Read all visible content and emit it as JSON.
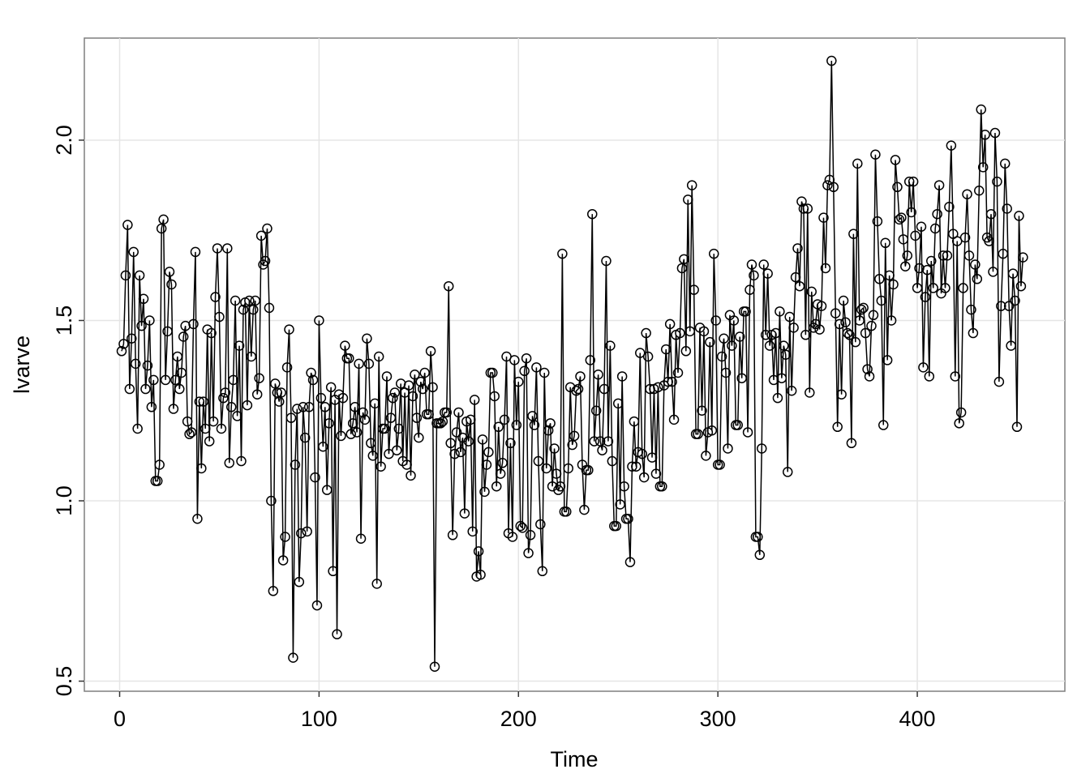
{
  "chart_data": {
    "type": "line",
    "x_label": "Time",
    "y_label": "lvarve",
    "color": "#000000",
    "grid": true,
    "xlim": [
      -17.7,
      474
    ],
    "ylim": [
      0.472,
      2.283
    ],
    "xticks": [
      0,
      100,
      200,
      300,
      400
    ],
    "yticks": [
      {
        "value": 0.5,
        "label": "0.5"
      },
      {
        "value": 1.0,
        "label": "1.0"
      },
      {
        "value": 1.5,
        "label": "1.5"
      },
      {
        "value": 2.0,
        "label": "2.0"
      }
    ],
    "x": [
      1,
      2,
      3,
      4,
      5,
      6,
      7,
      8,
      9,
      10,
      11,
      12,
      13,
      14,
      15,
      16,
      17,
      18,
      19,
      20,
      21,
      22,
      23,
      24,
      25,
      26,
      27,
      28,
      29,
      30,
      31,
      32,
      33,
      34,
      35,
      36,
      37,
      38,
      39,
      40,
      41,
      42,
      43,
      44,
      45,
      46,
      47,
      48,
      49,
      50,
      51,
      52,
      53,
      54,
      55,
      56,
      57,
      58,
      59,
      60,
      61,
      62,
      63,
      64,
      65,
      66,
      67,
      68,
      69,
      70,
      71,
      72,
      73,
      74,
      75,
      76,
      77,
      78,
      79,
      80,
      81,
      82,
      83,
      84,
      85,
      86,
      87,
      88,
      89,
      90,
      91,
      92,
      93,
      94,
      95,
      96,
      97,
      98,
      99,
      100,
      101,
      102,
      103,
      104,
      105,
      106,
      107,
      108,
      109,
      110,
      111,
      112,
      113,
      114,
      115,
      116,
      117,
      118,
      119,
      120,
      121,
      122,
      123,
      124,
      125,
      126,
      127,
      128,
      129,
      130,
      131,
      132,
      133,
      134,
      135,
      136,
      137,
      138,
      139,
      140,
      141,
      142,
      143,
      144,
      145,
      146,
      147,
      148,
      149,
      150,
      151,
      152,
      153,
      154,
      155,
      156,
      157,
      158,
      159,
      160,
      161,
      162,
      163,
      164,
      165,
      166,
      167,
      168,
      169,
      170,
      171,
      172,
      173,
      174,
      175,
      176,
      177,
      178,
      179,
      180,
      181,
      182,
      183,
      184,
      185,
      186,
      187,
      188,
      189,
      190,
      191,
      192,
      193,
      194,
      195,
      196,
      197,
      198,
      199,
      200,
      201,
      202,
      203,
      204,
      205,
      206,
      207,
      208,
      209,
      210,
      211,
      212,
      213,
      214,
      215,
      216,
      217,
      218,
      219,
      220,
      221,
      222,
      223,
      224,
      225,
      226,
      227,
      228,
      229,
      230,
      231,
      232,
      233,
      234,
      235,
      236,
      237,
      238,
      239,
      240,
      241,
      242,
      243,
      244,
      245,
      246,
      247,
      248,
      249,
      250,
      251,
      252,
      253,
      254,
      255,
      256,
      257,
      258,
      259,
      260,
      261,
      262,
      263,
      264,
      265,
      266,
      267,
      268,
      269,
      270,
      271,
      272,
      273,
      274,
      275,
      276,
      277,
      278,
      279,
      280,
      281,
      282,
      283,
      284,
      285,
      286,
      287,
      288,
      289,
      290,
      291,
      292,
      293,
      294,
      295,
      296,
      297,
      298,
      299,
      300,
      301,
      302,
      303,
      304,
      305,
      306,
      307,
      308,
      309,
      310,
      311,
      312,
      313,
      314,
      315,
      316,
      317,
      318,
      319,
      320,
      321,
      322,
      323,
      324,
      325,
      326,
      327,
      328,
      329,
      330,
      331,
      332,
      333,
      334,
      335,
      336,
      337,
      338,
      339,
      340,
      341,
      342,
      343,
      344,
      345,
      346,
      347,
      348,
      349,
      350,
      351,
      352,
      353,
      354,
      355,
      356,
      357,
      358,
      359,
      360,
      361,
      362,
      363,
      364,
      365,
      366,
      367,
      368,
      369,
      370,
      371,
      372,
      373,
      374,
      375,
      376,
      377,
      378,
      379,
      380,
      381,
      382,
      383,
      384,
      385,
      386,
      387,
      388,
      389,
      390,
      391,
      392,
      393,
      394,
      395,
      396,
      397,
      398,
      399,
      400,
      401,
      402,
      403,
      404,
      405,
      406,
      407,
      408,
      409,
      410,
      411,
      412,
      413,
      414,
      415,
      416,
      417,
      418,
      419,
      420,
      421,
      422,
      423,
      424,
      425,
      426,
      427,
      428,
      429,
      430,
      431,
      432,
      433,
      434,
      435,
      436,
      437,
      438,
      439,
      440,
      441,
      442,
      443,
      444,
      445,
      446,
      447,
      448,
      449,
      450,
      451,
      452,
      453
    ],
    "values": [
      1.415,
      1.435,
      1.625,
      1.765,
      1.31,
      1.45,
      1.69,
      1.38,
      1.2,
      1.625,
      1.485,
      1.56,
      1.31,
      1.375,
      1.5,
      1.26,
      1.335,
      1.055,
      1.055,
      1.1,
      1.755,
      1.78,
      1.335,
      1.47,
      1.635,
      1.6,
      1.255,
      1.335,
      1.4,
      1.31,
      1.355,
      1.455,
      1.485,
      1.22,
      1.185,
      1.19,
      1.49,
      1.69,
      0.95,
      1.275,
      1.09,
      1.275,
      1.2,
      1.475,
      1.165,
      1.465,
      1.22,
      1.565,
      1.7,
      1.51,
      1.2,
      1.285,
      1.3,
      1.7,
      1.105,
      1.26,
      1.335,
      1.555,
      1.235,
      1.43,
      1.11,
      1.53,
      1.55,
      1.265,
      1.555,
      1.4,
      1.53,
      1.555,
      1.295,
      1.34,
      1.735,
      1.655,
      1.665,
      1.755,
      1.535,
      1.0,
      0.75,
      1.325,
      1.3,
      1.275,
      1.3,
      0.835,
      0.9,
      1.37,
      1.475,
      1.23,
      0.565,
      1.1,
      1.255,
      0.775,
      0.91,
      1.26,
      1.175,
      0.915,
      1.26,
      1.355,
      1.335,
      1.065,
      0.71,
      1.5,
      1.285,
      1.15,
      1.26,
      1.03,
      1.215,
      1.315,
      0.805,
      1.28,
      0.63,
      1.295,
      1.18,
      1.285,
      1.43,
      1.395,
      1.395,
      1.185,
      1.215,
      1.26,
      1.19,
      1.38,
      0.895,
      1.245,
      1.225,
      1.45,
      1.38,
      1.16,
      1.125,
      1.27,
      0.77,
      1.4,
      1.095,
      1.2,
      1.2,
      1.345,
      1.13,
      1.23,
      1.285,
      1.3,
      1.14,
      1.2,
      1.325,
      1.11,
      1.3,
      1.1,
      1.32,
      1.07,
      1.29,
      1.35,
      1.23,
      1.175,
      1.33,
      1.31,
      1.355,
      1.24,
      1.24,
      1.415,
      1.315,
      0.54,
      1.215,
      1.215,
      1.215,
      1.22,
      1.245,
      1.245,
      1.595,
      1.16,
      0.905,
      1.13,
      1.19,
      1.245,
      1.135,
      1.175,
      0.965,
      1.22,
      1.165,
      1.225,
      0.915,
      1.28,
      0.79,
      0.86,
      0.795,
      1.17,
      1.025,
      1.1,
      1.135,
      1.355,
      1.355,
      1.29,
      1.04,
      1.205,
      1.075,
      1.105,
      1.225,
      1.4,
      0.91,
      1.16,
      0.9,
      1.39,
      1.21,
      1.33,
      0.93,
      0.925,
      1.36,
      1.395,
      0.855,
      0.905,
      1.235,
      1.21,
      1.37,
      1.11,
      0.935,
      0.805,
      1.355,
      1.09,
      1.195,
      1.215,
      1.04,
      1.145,
      1.075,
      1.03,
      1.04,
      1.685,
      0.97,
      0.97,
      1.09,
      1.315,
      1.155,
      1.18,
      1.305,
      1.31,
      1.345,
      1.1,
      0.975,
      1.085,
      1.085,
      1.39,
      1.795,
      1.165,
      1.25,
      1.35,
      1.165,
      1.14,
      1.31,
      1.665,
      1.165,
      1.43,
      1.11,
      0.93,
      0.93,
      1.27,
      0.99,
      1.345,
      1.04,
      0.95,
      0.95,
      0.83,
      1.095,
      1.22,
      1.095,
      1.135,
      1.41,
      1.13,
      1.065,
      1.465,
      1.4,
      1.31,
      1.12,
      1.31,
      1.075,
      1.315,
      1.04,
      1.04,
      1.32,
      1.42,
      1.33,
      1.49,
      1.33,
      1.225,
      1.46,
      1.355,
      1.465,
      1.645,
      1.67,
      1.415,
      1.835,
      1.47,
      1.875,
      1.585,
      1.185,
      1.185,
      1.48,
      1.25,
      1.47,
      1.125,
      1.19,
      1.44,
      1.195,
      1.685,
      1.5,
      1.1,
      1.1,
      1.4,
      1.45,
      1.355,
      1.145,
      1.515,
      1.43,
      1.5,
      1.21,
      1.21,
      1.455,
      1.34,
      1.525,
      1.525,
      1.19,
      1.585,
      1.655,
      1.625,
      0.9,
      0.9,
      0.85,
      1.145,
      1.655,
      1.46,
      1.63,
      1.43,
      1.46,
      1.335,
      1.465,
      1.285,
      1.525,
      1.34,
      1.43,
      1.405,
      1.08,
      1.51,
      1.305,
      1.48,
      1.62,
      1.7,
      1.595,
      1.83,
      1.81,
      1.46,
      1.81,
      1.3,
      1.58,
      1.48,
      1.49,
      1.545,
      1.475,
      1.54,
      1.785,
      1.645,
      1.875,
      1.89,
      2.22,
      1.87,
      1.52,
      1.205,
      1.49,
      1.295,
      1.555,
      1.495,
      1.465,
      1.46,
      1.16,
      1.74,
      1.44,
      1.935,
      1.5,
      1.53,
      1.535,
      1.465,
      1.365,
      1.345,
      1.485,
      1.515,
      1.96,
      1.775,
      1.615,
      1.555,
      1.21,
      1.715,
      1.39,
      1.625,
      1.5,
      1.6,
      1.945,
      1.87,
      1.78,
      1.785,
      1.725,
      1.65,
      1.68,
      1.885,
      1.8,
      1.885,
      1.735,
      1.59,
      1.645,
      1.76,
      1.37,
      1.565,
      1.64,
      1.345,
      1.665,
      1.59,
      1.755,
      1.795,
      1.875,
      1.575,
      1.68,
      1.59,
      1.68,
      1.815,
      1.985,
      1.74,
      1.345,
      1.72,
      1.215,
      1.245,
      1.59,
      1.73,
      1.85,
      1.68,
      1.53,
      1.465,
      1.655,
      1.615,
      1.86,
      2.085,
      1.925,
      2.015,
      1.73,
      1.72,
      1.795,
      1.635,
      2.02,
      1.885,
      1.33,
      1.54,
      1.685,
      1.935,
      1.81,
      1.54,
      1.43,
      1.63,
      1.555,
      1.205,
      1.79,
      1.595,
      1.675
    ]
  }
}
